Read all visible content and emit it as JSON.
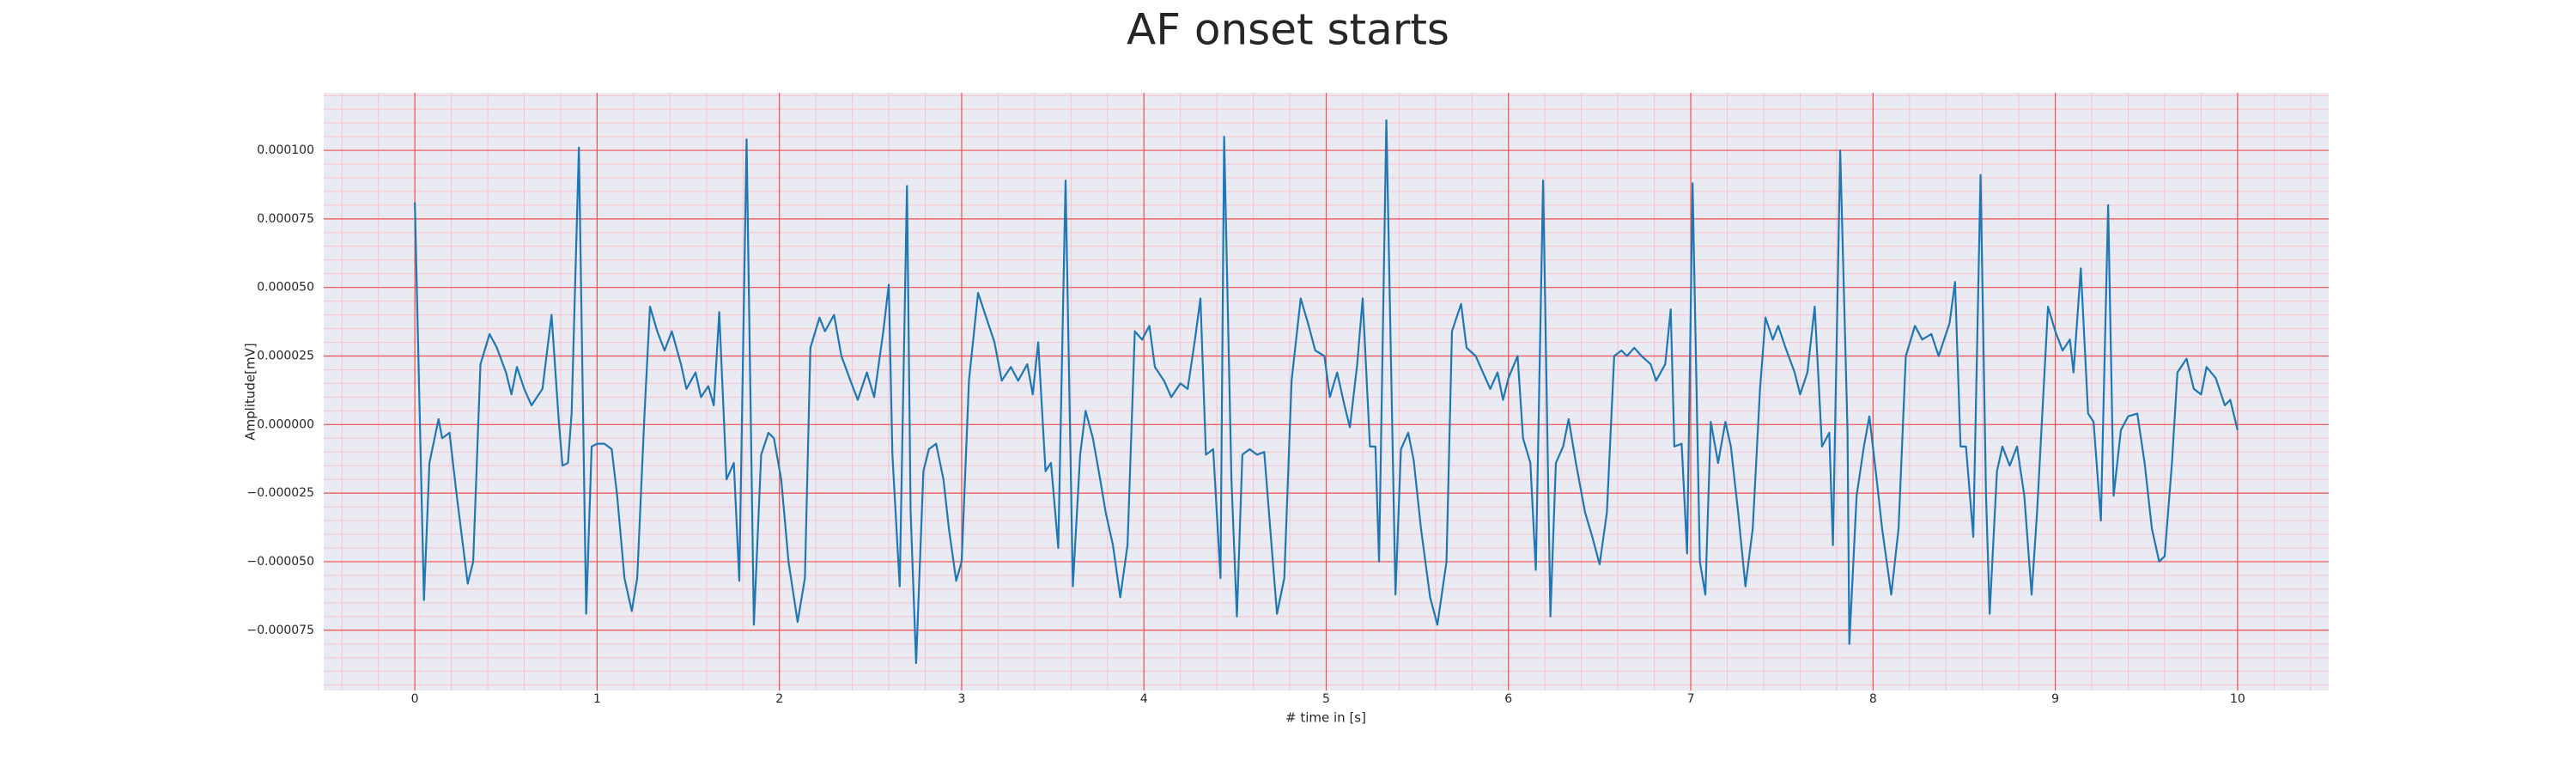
{
  "chart_data": {
    "type": "line",
    "title": "AF onset starts",
    "xlabel": "# time in [s]",
    "ylabel": "Amplitude[mV]",
    "color": "#1f77b4",
    "background": "#eaeaf2",
    "grid": true,
    "grid_color": "#f05050",
    "minor_grid": true,
    "minor_grid_color": "#f6c4cc",
    "xlim": [
      -0.5,
      10.5
    ],
    "ylim": [
      -9.7e-05,
      0.000121
    ],
    "xticks": [
      0,
      1,
      2,
      3,
      4,
      5,
      6,
      7,
      8,
      9,
      10
    ],
    "yticks": [
      {
        "value": -7.5e-05,
        "label": "−0.000075"
      },
      {
        "value": -5e-05,
        "label": "−0.000050"
      },
      {
        "value": -2.5e-05,
        "label": "−0.000025"
      },
      {
        "value": 0,
        "label": "0.000000"
      },
      {
        "value": 2.5e-05,
        "label": "0.000025"
      },
      {
        "value": 5e-05,
        "label": "0.000050"
      },
      {
        "value": 7.5e-05,
        "label": "0.000075"
      },
      {
        "value": 0.0001,
        "label": "0.000100"
      }
    ],
    "x": [
      0,
      0.05,
      0.08,
      0.13,
      0.15,
      0.19,
      0.23,
      0.29,
      0.32,
      0.36,
      0.41,
      0.45,
      0.5,
      0.53,
      0.56,
      0.6,
      0.64,
      0.7,
      0.75,
      0.79,
      0.81,
      0.84,
      0.86,
      0.9,
      0.94,
      0.97,
      1.0,
      1.04,
      1.08,
      1.11,
      1.15,
      1.19,
      1.22,
      1.26,
      1.29,
      1.33,
      1.37,
      1.41,
      1.46,
      1.49,
      1.54,
      1.57,
      1.61,
      1.64,
      1.67,
      1.71,
      1.75,
      1.78,
      1.82,
      1.86,
      1.9,
      1.94,
      1.97,
      2.01,
      2.05,
      2.1,
      2.14,
      2.17,
      2.22,
      2.25,
      2.3,
      2.34,
      2.39,
      2.43,
      2.48,
      2.52,
      2.57,
      2.6,
      2.62,
      2.66,
      2.7,
      2.72,
      2.75,
      2.79,
      2.82,
      2.86,
      2.9,
      2.93,
      2.97,
      3.0,
      3.04,
      3.09,
      3.13,
      3.18,
      3.22,
      3.27,
      3.31,
      3.36,
      3.39,
      3.42,
      3.46,
      3.49,
      3.53,
      3.57,
      3.61,
      3.65,
      3.68,
      3.72,
      3.76,
      3.79,
      3.83,
      3.87,
      3.91,
      3.95,
      3.99,
      4.03,
      4.06,
      4.11,
      4.15,
      4.2,
      4.24,
      4.28,
      4.31,
      4.34,
      4.38,
      4.42,
      4.44,
      4.48,
      4.51,
      4.54,
      4.58,
      4.62,
      4.66,
      4.7,
      4.73,
      4.77,
      4.81,
      4.86,
      4.9,
      4.94,
      4.99,
      5.02,
      5.06,
      5.1,
      5.13,
      5.17,
      5.2,
      5.24,
      5.27,
      5.29,
      5.33,
      5.38,
      5.41,
      5.45,
      5.48,
      5.52,
      5.57,
      5.61,
      5.66,
      5.69,
      5.74,
      5.77,
      5.82,
      5.86,
      5.9,
      5.94,
      5.97,
      6.0,
      6.05,
      6.08,
      6.12,
      6.15,
      6.19,
      6.23,
      6.26,
      6.3,
      6.33,
      6.37,
      6.42,
      6.46,
      6.5,
      6.54,
      6.58,
      6.62,
      6.65,
      6.69,
      6.73,
      6.78,
      6.81,
      6.86,
      6.89,
      6.91,
      6.95,
      6.98,
      7.01,
      7.05,
      7.08,
      7.11,
      7.15,
      7.19,
      7.22,
      7.26,
      7.3,
      7.34,
      7.38,
      7.41,
      7.45,
      7.48,
      7.52,
      7.57,
      7.6,
      7.64,
      7.68,
      7.72,
      7.76,
      7.78,
      7.82,
      7.86,
      7.87,
      7.91,
      7.95,
      7.98,
      8.02,
      8.05,
      8.1,
      8.14,
      8.18,
      8.23,
      8.27,
      8.32,
      8.36,
      8.42,
      8.45,
      8.48,
      8.51,
      8.55,
      8.59,
      8.62,
      8.64,
      8.68,
      8.71,
      8.75,
      8.79,
      8.83,
      8.87,
      8.9,
      8.96,
      9.0,
      9.04,
      9.08,
      9.1,
      9.14,
      9.18,
      9.21,
      9.25,
      9.29,
      9.32,
      9.36,
      9.4,
      9.45,
      9.49,
      9.53,
      9.57,
      9.6,
      9.64,
      9.67,
      9.72,
      9.76,
      9.8,
      9.83,
      9.88,
      9.93,
      9.96,
      10.0
    ],
    "values": [
      8.1e-05,
      -6.4e-05,
      -1.4e-05,
      2e-06,
      -5e-06,
      -3e-06,
      -2.6e-05,
      -5.8e-05,
      -5e-05,
      2.2e-05,
      3.3e-05,
      2.8e-05,
      1.9e-05,
      1.1e-05,
      2.1e-05,
      1.3e-05,
      7e-06,
      1.3e-05,
      4e-05,
      1e-06,
      -1.5e-05,
      -1.4e-05,
      4e-06,
      0.000101,
      -6.9e-05,
      -8e-06,
      -7e-06,
      -7e-06,
      -9e-06,
      -2.6e-05,
      -5.6e-05,
      -6.8e-05,
      -5.6e-05,
      4e-06,
      4.3e-05,
      3.4e-05,
      2.7e-05,
      3.4e-05,
      2.2e-05,
      1.3e-05,
      1.9e-05,
      1e-05,
      1.4e-05,
      7e-06,
      4.1e-05,
      -2e-05,
      -1.4e-05,
      -5.7e-05,
      0.000104,
      -7.3e-05,
      -1.1e-05,
      -3e-06,
      -5e-06,
      -2e-05,
      -5e-05,
      -7.2e-05,
      -5.6e-05,
      2.8e-05,
      3.9e-05,
      3.4e-05,
      4e-05,
      2.5e-05,
      1.6e-05,
      9e-06,
      1.9e-05,
      1e-05,
      3.4e-05,
      5.1e-05,
      -1.1e-05,
      -5.9e-05,
      8.7e-05,
      -3.2e-05,
      -8.7e-05,
      -1.7e-05,
      -9e-06,
      -7e-06,
      -2e-05,
      -3.8e-05,
      -5.7e-05,
      -5e-05,
      1.6e-05,
      4.8e-05,
      4e-05,
      3e-05,
      1.6e-05,
      2.1e-05,
      1.6e-05,
      2.2e-05,
      1.1e-05,
      3e-05,
      -1.7e-05,
      -1.4e-05,
      -4.5e-05,
      8.9e-05,
      -5.9e-05,
      -1.1e-05,
      5e-06,
      -5e-06,
      -2e-05,
      -3.2e-05,
      -4.4e-05,
      -6.3e-05,
      -4.4e-05,
      3.4e-05,
      3.1e-05,
      3.6e-05,
      2.1e-05,
      1.6e-05,
      1e-05,
      1.5e-05,
      1.3e-05,
      3.1e-05,
      4.6e-05,
      -1.1e-05,
      -9e-06,
      -5.6e-05,
      0.000105,
      -2e-05,
      -7e-05,
      -1.1e-05,
      -9e-06,
      -1.1e-05,
      -1e-05,
      -4.4e-05,
      -6.9e-05,
      -5.6e-05,
      1.6e-05,
      4.6e-05,
      3.7e-05,
      2.7e-05,
      2.5e-05,
      1e-05,
      1.9e-05,
      7e-06,
      -1e-06,
      2.2e-05,
      4.6e-05,
      -8e-06,
      -8e-06,
      -5e-05,
      0.000111,
      -6.2e-05,
      -9e-06,
      -3e-06,
      -1.3e-05,
      -3.8e-05,
      -6.3e-05,
      -7.3e-05,
      -5e-05,
      3.4e-05,
      4.4e-05,
      2.8e-05,
      2.5e-05,
      1.9e-05,
      1.3e-05,
      1.9e-05,
      9e-06,
      1.7e-05,
      2.5e-05,
      -5e-06,
      -1.4e-05,
      -5.3e-05,
      8.9e-05,
      -7e-05,
      -1.4e-05,
      -8e-06,
      2e-06,
      -1.4e-05,
      -3.2e-05,
      -4.1e-05,
      -5.1e-05,
      -3.2e-05,
      2.5e-05,
      2.7e-05,
      2.5e-05,
      2.8e-05,
      2.5e-05,
      2.2e-05,
      1.6e-05,
      2.2e-05,
      4.2e-05,
      -8e-06,
      -7e-06,
      -4.7e-05,
      8.8e-05,
      -5e-05,
      -6.2e-05,
      1e-06,
      -1.4e-05,
      1e-06,
      -8e-06,
      -3.2e-05,
      -5.9e-05,
      -3.8e-05,
      1.3e-05,
      3.9e-05,
      3.1e-05,
      3.6e-05,
      2.8e-05,
      1.9e-05,
      1.1e-05,
      1.9e-05,
      4.3e-05,
      -8e-06,
      -3e-06,
      -4.4e-05,
      0.0001,
      -2e-06,
      -8e-05,
      -2.6e-05,
      -8e-06,
      3e-06,
      -2e-05,
      -3.8e-05,
      -6.2e-05,
      -3.8e-05,
      2.5e-05,
      3.6e-05,
      3.1e-05,
      3.3e-05,
      2.5e-05,
      3.7e-05,
      5.2e-05,
      -8e-06,
      -8e-06,
      -4.1e-05,
      9.1e-05,
      -2.6e-05,
      -6.9e-05,
      -1.7e-05,
      -8e-06,
      -1.5e-05,
      -8e-06,
      -2.6e-05,
      -6.2e-05,
      -3.2e-05,
      4.3e-05,
      3.4e-05,
      2.7e-05,
      3.1e-05,
      1.9e-05,
      5.7e-05,
      4e-06,
      1e-06,
      -3.5e-05,
      8e-05,
      -2.6e-05,
      -2e-06,
      3e-06,
      4e-06,
      -1.4e-05,
      -3.8e-05,
      -5e-05,
      -4.8e-05,
      -1.4e-05,
      1.9e-05,
      2.4e-05,
      1.3e-05,
      1.1e-05,
      2.1e-05,
      1.7e-05,
      7e-06,
      9e-06,
      -2e-06
    ]
  }
}
